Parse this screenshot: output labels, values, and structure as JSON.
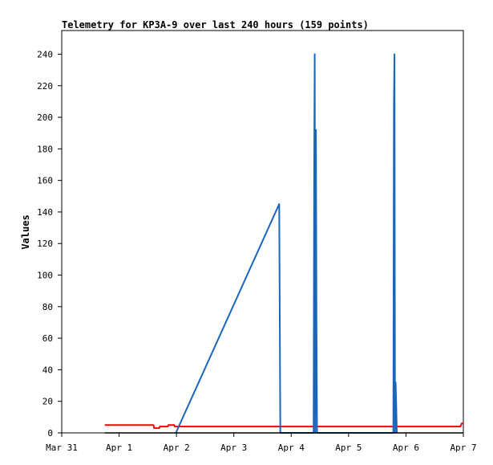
{
  "chart_data": {
    "type": "line",
    "title": "Telemetry for KP3A-9 over last 240 hours (159 points)",
    "ylabel": "Values",
    "xlabel": "",
    "ylim": [
      0,
      255
    ],
    "xlim": [
      "Mar 31",
      "Apr 7"
    ],
    "yticks": [
      0,
      20,
      40,
      60,
      80,
      100,
      120,
      140,
      160,
      180,
      200,
      220,
      240
    ],
    "xticks": [
      {
        "label": "Mar 31",
        "day": 0
      },
      {
        "label": "Apr 1",
        "day": 1
      },
      {
        "label": "Apr 2",
        "day": 2
      },
      {
        "label": "Apr 3",
        "day": 3
      },
      {
        "label": "Apr 4",
        "day": 4
      },
      {
        "label": "Apr 5",
        "day": 5
      },
      {
        "label": "Apr 6",
        "day": 6
      },
      {
        "label": "Apr 7",
        "day": 7
      }
    ],
    "grid": false,
    "legend": "none",
    "series": [
      {
        "color": "#ff0000",
        "points": [
          [
            0.75,
            5
          ],
          [
            1.6,
            5
          ],
          [
            1.61,
            3
          ],
          [
            1.7,
            3
          ],
          [
            1.71,
            4
          ],
          [
            1.85,
            4
          ],
          [
            1.86,
            5
          ],
          [
            1.96,
            5
          ],
          [
            1.97,
            4
          ],
          [
            6.95,
            4
          ],
          [
            6.97,
            6
          ],
          [
            7.0,
            6
          ]
        ]
      },
      {
        "color": "#1a66bb",
        "points": [
          [
            1.99,
            0
          ],
          [
            3.79,
            145
          ],
          [
            3.8,
            72
          ],
          [
            3.81,
            0
          ],
          [
            4.39,
            0
          ],
          [
            4.4,
            160
          ],
          [
            4.41,
            240
          ],
          [
            4.42,
            0
          ],
          [
            4.43,
            192
          ],
          [
            4.44,
            72
          ],
          [
            4.45,
            0
          ],
          [
            5.78,
            0
          ],
          [
            5.79,
            208
          ],
          [
            5.8,
            240
          ],
          [
            5.81,
            0
          ],
          [
            5.82,
            32
          ],
          [
            5.83,
            17
          ],
          [
            5.84,
            0
          ]
        ]
      },
      {
        "color": "#000000",
        "points": [
          [
            0.75,
            0
          ],
          [
            7.0,
            0
          ]
        ]
      }
    ]
  }
}
